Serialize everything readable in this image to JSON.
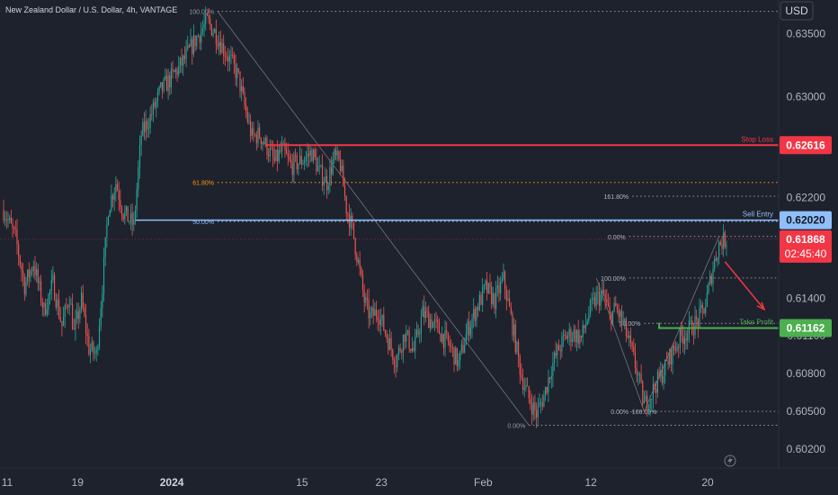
{
  "header": {
    "symbol_title": "New Zealand Dollar / U.S. Dollar, 4h, VANTAGE"
  },
  "currency_badge": "USD",
  "chart_data": {
    "type": "candlestick",
    "title": "New Zealand Dollar / U.S. Dollar, 4h, VANTAGE",
    "ylabel": "USD",
    "ylim": [
      0.6005,
      0.6377
    ],
    "y_ticks": [
      "0.63500",
      "0.63000",
      "0.62200",
      "0.61400",
      "0.61100",
      "0.60800",
      "0.60500",
      "0.60200"
    ],
    "x_ticks": [
      "11",
      "19",
      "2024",
      "15",
      "23",
      "Feb",
      "12",
      "20"
    ],
    "x_tick_bars": [
      0,
      47,
      110,
      197,
      250,
      318,
      390,
      468
    ],
    "bar_count": 483,
    "grid": false,
    "colors": {
      "up": "#26a69a",
      "down": "#ef5350",
      "background": "#1e222d"
    },
    "price_path": [
      [
        0,
        0.621
      ],
      [
        8,
        0.6188
      ],
      [
        14,
        0.615
      ],
      [
        20,
        0.6168
      ],
      [
        27,
        0.613
      ],
      [
        33,
        0.6152
      ],
      [
        39,
        0.6118
      ],
      [
        44,
        0.6142
      ],
      [
        47,
        0.6112
      ],
      [
        52,
        0.6138
      ],
      [
        57,
        0.61
      ],
      [
        62,
        0.6095
      ],
      [
        66,
        0.615
      ],
      [
        70,
        0.6212
      ],
      [
        75,
        0.6232
      ],
      [
        80,
        0.6208
      ],
      [
        87,
        0.6198
      ],
      [
        92,
        0.627
      ],
      [
        98,
        0.6284
      ],
      [
        105,
        0.6305
      ],
      [
        112,
        0.6315
      ],
      [
        120,
        0.6328
      ],
      [
        128,
        0.6345
      ],
      [
        136,
        0.636
      ],
      [
        142,
        0.635
      ],
      [
        147,
        0.6338
      ],
      [
        152,
        0.6328
      ],
      [
        157,
        0.6315
      ],
      [
        161,
        0.6292
      ],
      [
        166,
        0.6268
      ],
      [
        171,
        0.627
      ],
      [
        176,
        0.626
      ],
      [
        181,
        0.6248
      ],
      [
        186,
        0.6258
      ],
      [
        192,
        0.6245
      ],
      [
        197,
        0.6248
      ],
      [
        202,
        0.6252
      ],
      [
        206,
        0.6256
      ],
      [
        211,
        0.624
      ],
      [
        216,
        0.6232
      ],
      [
        221,
        0.6252
      ],
      [
        225,
        0.6246
      ],
      [
        229,
        0.6212
      ],
      [
        233,
        0.6195
      ],
      [
        237,
        0.6168
      ],
      [
        241,
        0.6138
      ],
      [
        245,
        0.6125
      ],
      [
        250,
        0.613
      ],
      [
        256,
        0.611
      ],
      [
        262,
        0.609
      ],
      [
        268,
        0.6112
      ],
      [
        274,
        0.6098
      ],
      [
        280,
        0.6128
      ],
      [
        286,
        0.6122
      ],
      [
        292,
        0.6112
      ],
      [
        298,
        0.6102
      ],
      [
        304,
        0.6088
      ],
      [
        310,
        0.6115
      ],
      [
        316,
        0.6132
      ],
      [
        322,
        0.6148
      ],
      [
        328,
        0.6138
      ],
      [
        334,
        0.6155
      ],
      [
        340,
        0.6118
      ],
      [
        346,
        0.6078
      ],
      [
        351,
        0.606
      ],
      [
        356,
        0.6048
      ],
      [
        361,
        0.6062
      ],
      [
        366,
        0.6085
      ],
      [
        371,
        0.61
      ],
      [
        376,
        0.611
      ],
      [
        381,
        0.6112
      ],
      [
        386,
        0.6108
      ],
      [
        391,
        0.6128
      ],
      [
        396,
        0.614
      ],
      [
        401,
        0.6142
      ],
      [
        405,
        0.6125
      ],
      [
        409,
        0.6132
      ],
      [
        414,
        0.612
      ],
      [
        419,
        0.61
      ],
      [
        424,
        0.6078
      ],
      [
        428,
        0.6055
      ],
      [
        432,
        0.6062
      ],
      [
        436,
        0.6072
      ],
      [
        440,
        0.608
      ],
      [
        446,
        0.6095
      ],
      [
        452,
        0.6108
      ],
      [
        458,
        0.6115
      ],
      [
        464,
        0.6122
      ],
      [
        469,
        0.6135
      ],
      [
        474,
        0.6165
      ],
      [
        478,
        0.6183
      ],
      [
        483,
        0.6187
      ]
    ],
    "horizontal_levels": [
      {
        "label": "Stop Loss",
        "price": 0.62616,
        "badge": "0.62616",
        "color": "#f23645"
      },
      {
        "label": "Sell Entry",
        "price": 0.6202,
        "badge": "0.62020",
        "color": "#90bff9"
      },
      {
        "label": "Take Profit",
        "price": 0.61162,
        "badge": "0.61162",
        "color": "#4caf50"
      }
    ],
    "current_price": {
      "price": 0.61868,
      "badge": "0.61868",
      "countdown": "02:45:40",
      "color": "#f23645"
    },
    "fib_left": {
      "levels": [
        {
          "label": "100.00%",
          "price": 0.6368
        },
        {
          "label": "61.80%",
          "price": 0.6232
        },
        {
          "label": "50.00%",
          "price": 0.6201
        },
        {
          "label": "0.00%",
          "price": 0.6039
        }
      ]
    },
    "fib_right": {
      "levels": [
        {
          "label": "161.80%",
          "price": 0.6221
        },
        {
          "label": "0.00%",
          "price": 0.6189
        },
        {
          "label": "100.00%",
          "price": 0.6156
        },
        {
          "label": "50.00%",
          "price": 0.612
        },
        {
          "label": "0.00%",
          "price": 0.605
        },
        {
          "label": "-100.00%",
          "price": 0.605
        }
      ]
    },
    "labels": {
      "stop_loss": "Stop Loss",
      "sell_entry": "Sell Entry",
      "take_profit": "Take Profit"
    }
  }
}
